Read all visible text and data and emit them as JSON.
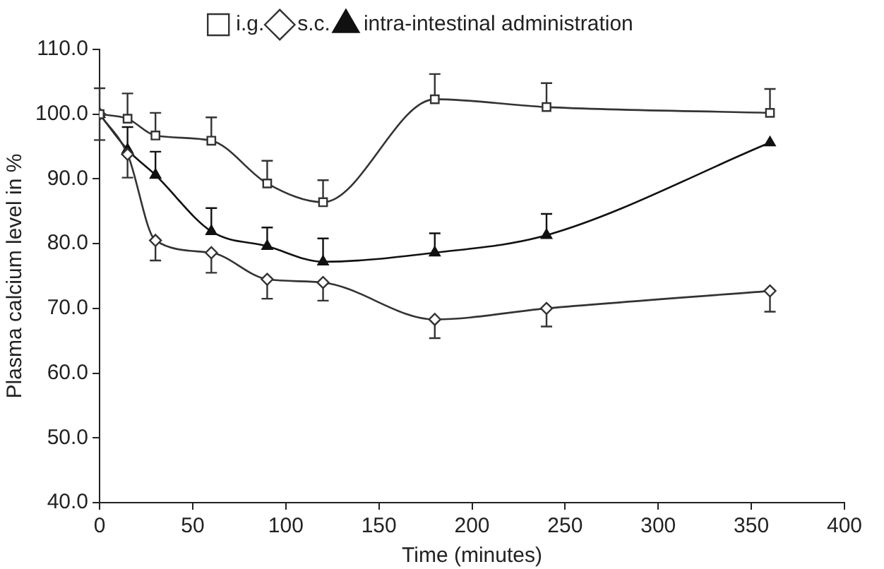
{
  "chart_data": {
    "type": "line",
    "xlabel": "Time (minutes)",
    "ylabel": "Plasma calcium level in %",
    "x": [
      0,
      15,
      30,
      60,
      90,
      120,
      180,
      240,
      360
    ],
    "series": [
      {
        "name": "i.g.",
        "color": "#333333",
        "marker": "square",
        "values": [
          100,
          99.3,
          96.7,
          95.9,
          89.3,
          86.4,
          102.3,
          101.1,
          100.2
        ],
        "errors": [
          [
            100,
            104
          ],
          [
            99.3,
            103.2
          ],
          [
            96.7,
            100.2
          ],
          [
            95.9,
            99.5
          ],
          [
            89.3,
            92.8
          ],
          [
            86.4,
            89.8
          ],
          [
            102.3,
            106.2
          ],
          [
            101.1,
            104.8
          ],
          [
            100.2,
            103.9
          ]
        ]
      },
      {
        "name": "s.c.",
        "color": "#333333",
        "marker": "diamond",
        "values": [
          100,
          93.8,
          80.5,
          78.6,
          74.5,
          74.0,
          68.3,
          70.0,
          72.7
        ],
        "errors": [
          [
            96,
            100
          ],
          [
            90.2,
            93.8
          ],
          [
            77.4,
            80.5
          ],
          [
            75.5,
            78.6
          ],
          [
            71.5,
            74.5
          ],
          [
            71.2,
            74.0
          ],
          [
            65.4,
            68.3
          ],
          [
            67.2,
            70.0
          ],
          [
            69.5,
            72.7
          ]
        ]
      },
      {
        "name": "intra-intestinal administration",
        "color": "#111111",
        "marker": "triangle",
        "values": [
          100,
          94.5,
          90.6,
          81.9,
          79.6,
          77.2,
          78.6,
          81.3,
          95.6
        ],
        "errors": [
          null,
          [
            94.5,
            98
          ],
          [
            90.6,
            94.2
          ],
          [
            81.9,
            85.5
          ],
          [
            79.6,
            82.5
          ],
          [
            77.2,
            80.8
          ],
          [
            78.6,
            81.6
          ],
          [
            81.3,
            84.6
          ],
          null
        ]
      }
    ],
    "xlim": [
      0,
      400
    ],
    "xticks": [
      0,
      50,
      100,
      150,
      200,
      250,
      300,
      350,
      400
    ],
    "ylim": [
      40,
      110
    ],
    "yticks": [
      {
        "value": 40,
        "label": "40.0"
      },
      {
        "value": 50,
        "label": "50.0"
      },
      {
        "value": 60,
        "label": "60.0"
      },
      {
        "value": 70,
        "label": "70.0"
      },
      {
        "value": 80,
        "label": "80.0"
      },
      {
        "value": 90,
        "label": "90.0"
      },
      {
        "value": 100,
        "label": "100.0"
      },
      {
        "value": 110,
        "label": "110.0"
      }
    ],
    "grid": false,
    "legend": "top"
  }
}
